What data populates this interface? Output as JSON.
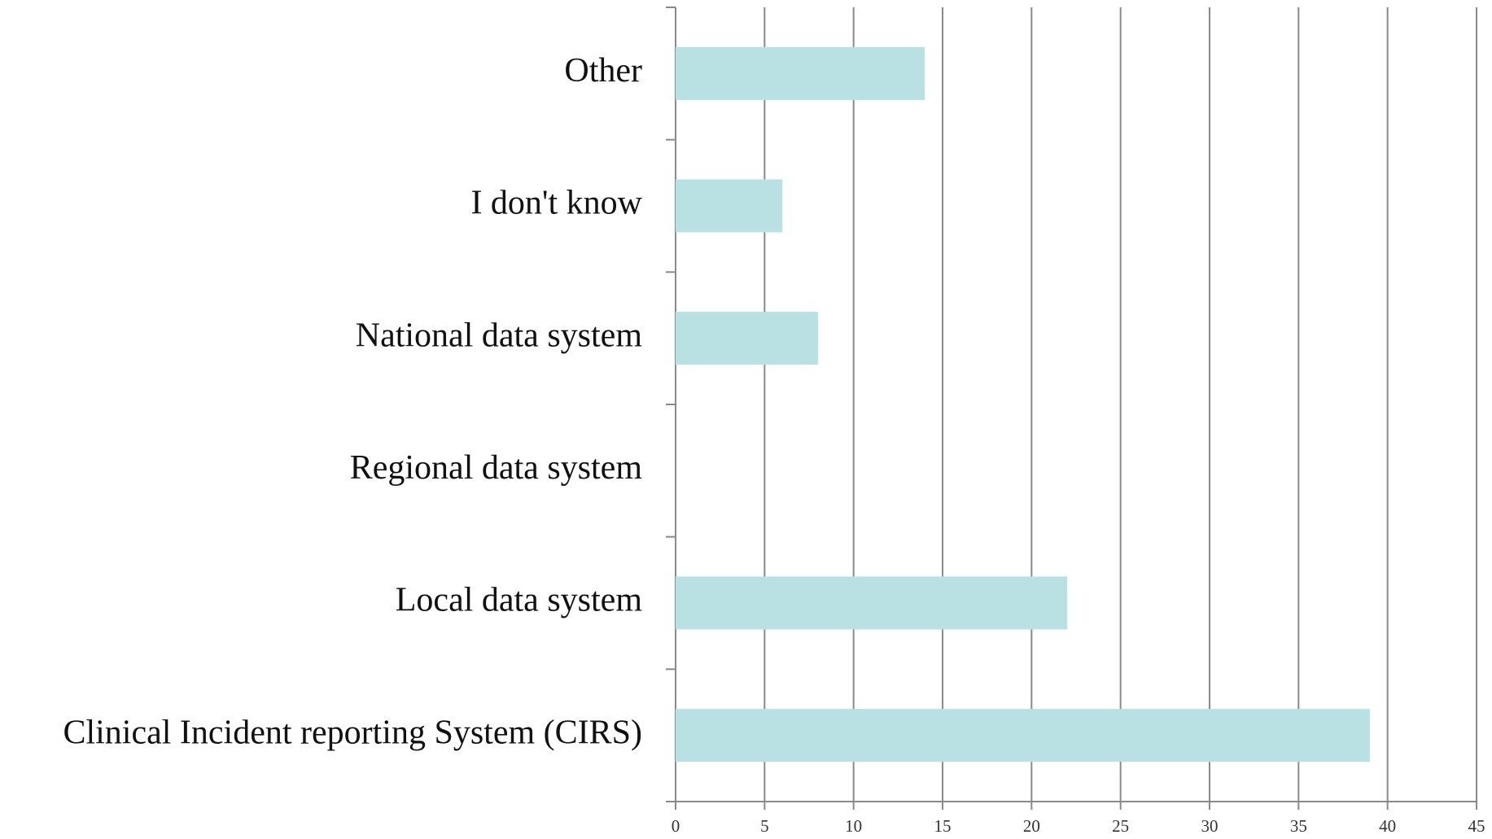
{
  "chart_data": {
    "type": "bar",
    "orientation": "horizontal",
    "categories": [
      "Clinical Incident reporting System (CIRS)",
      "Local data system",
      "Regional data system",
      "National data system",
      "I don't know",
      "Other"
    ],
    "values": [
      39,
      22,
      0,
      8,
      6,
      14
    ],
    "color": "#b9e0e3",
    "xlim": [
      0,
      45
    ],
    "xticks": [
      0,
      5,
      10,
      15,
      20,
      25,
      30,
      35,
      40,
      45
    ],
    "grid": true
  }
}
